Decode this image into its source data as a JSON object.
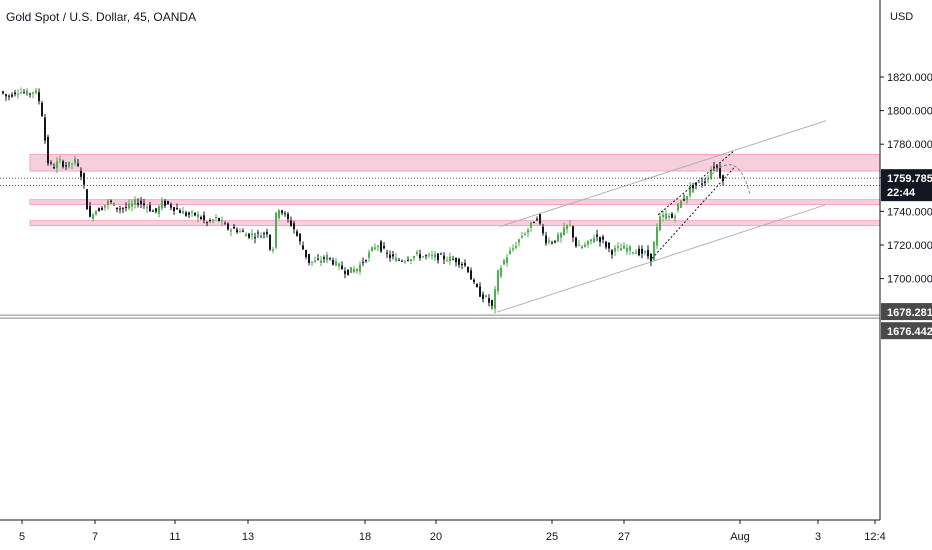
{
  "title": "Gold Spot / U.S. Dollar, 45, OANDA",
  "chart_data": {
    "type": "candlestick",
    "currency": "USD",
    "ylim": [
      1667,
      1843
    ],
    "y_ticks": [
      "1820.000",
      "1800.000",
      "1780.000",
      "1760.000",
      "1740.000",
      "1720.000",
      "1700.000"
    ],
    "x_ticks": [
      "5",
      "7",
      "11",
      "13",
      "18",
      "20",
      "25",
      "27",
      "Aug",
      "3",
      "12:4"
    ],
    "price_tags": [
      {
        "price": "1759.785",
        "sub": "22:44",
        "color": "#131722"
      },
      {
        "price": "1678.281",
        "color": "#4a4a4a"
      },
      {
        "price": "1676.442",
        "color": "#4a4a4a"
      }
    ],
    "zones": [
      {
        "name": "resistance-zone",
        "from": 1764.0,
        "to": 1774.0
      },
      {
        "name": "mid-zone",
        "from": 1744.0,
        "to": 1747.0
      },
      {
        "name": "support-zone",
        "from": 1731.5,
        "to": 1734.5
      }
    ],
    "grid": false,
    "legend": "none"
  },
  "colors": {
    "up": "#26a69a",
    "down": "#131722",
    "upbody": "#4caf50",
    "zone": "#f7c9d8",
    "zoneBorder": "#f48fb1"
  }
}
